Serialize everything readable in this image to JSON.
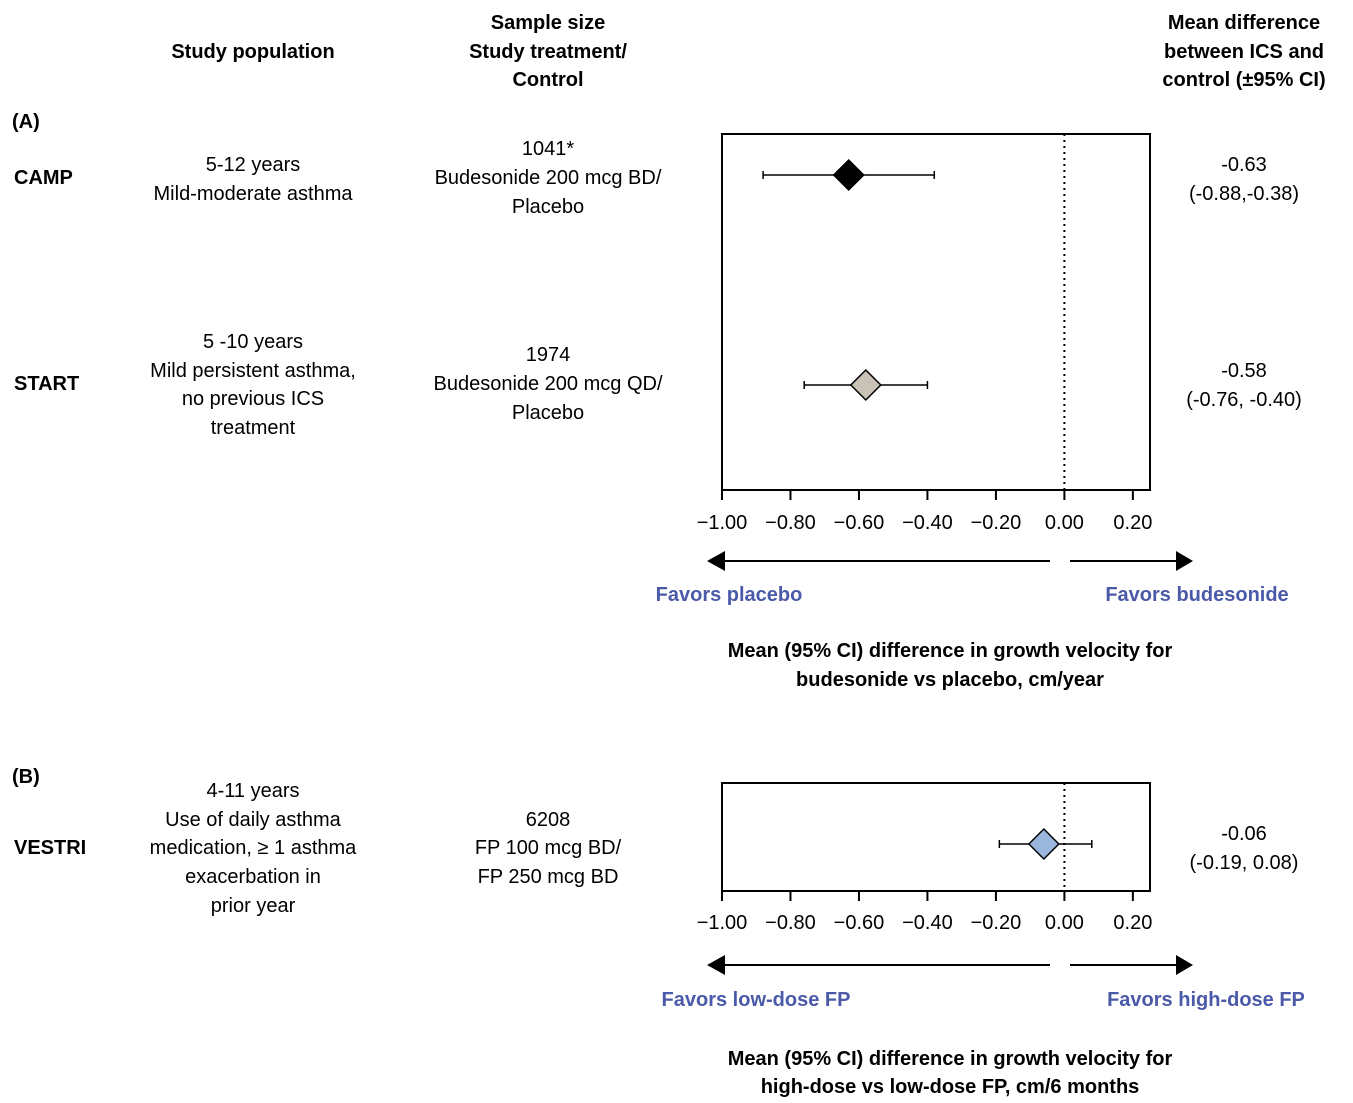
{
  "headers": {
    "population": "Study population",
    "sample": [
      "Sample size",
      "Study treatment/",
      "Control"
    ],
    "mean_diff": [
      "Mean difference",
      "between ICS and",
      "control (±95% CI)"
    ]
  },
  "panels": [
    {
      "label": "(A)",
      "studies": [
        {
          "name": "CAMP",
          "population": [
            "5-12 years",
            "Mild-moderate asthma"
          ],
          "sample": [
            "1041*",
            "Budesonide 200 mcg BD/",
            "Placebo"
          ],
          "estimate_text": [
            "-0.63",
            "(-0.88,-0.38)"
          ]
        },
        {
          "name": "START",
          "population": [
            "5 -10 years",
            "Mild persistent asthma,",
            "no previous ICS",
            "treatment"
          ],
          "sample": [
            "1974",
            "Budesonide 200 mcg QD/",
            "Placebo"
          ],
          "estimate_text": [
            "-0.58",
            "(-0.76, -0.40)"
          ]
        }
      ],
      "favors_left": "Favors placebo",
      "favors_right": "Favors budesonide",
      "xlabel": [
        "Mean (95% CI) difference in growth velocity for",
        "budesonide vs placebo, cm/year"
      ]
    },
    {
      "label": "(B)",
      "studies": [
        {
          "name": "VESTRI",
          "population": [
            "4-11 years",
            "Use of daily asthma",
            "medication, ≥ 1 asthma",
            "exacerbation in",
            "prior year"
          ],
          "sample": [
            "6208",
            "FP 100 mcg BD/",
            "FP 250 mcg BD"
          ],
          "estimate_text": [
            "-0.06",
            "(-0.19, 0.08)"
          ]
        }
      ],
      "favors_left": "Favors low-dose FP",
      "favors_right": "Favors high-dose FP",
      "xlabel": [
        "Mean (95% CI) difference in growth velocity for",
        "high-dose vs low-dose FP, cm/6 months"
      ]
    }
  ],
  "chart_data": [
    {
      "type": "scatter",
      "subtype": "forest",
      "panel": "(A)",
      "categories": [
        "CAMP",
        "START"
      ],
      "estimates": [
        -0.63,
        -0.58
      ],
      "ci_low": [
        -0.88,
        -0.76
      ],
      "ci_high": [
        -0.38,
        -0.4
      ],
      "marker_colors": [
        "#000000",
        "#c9c3b7"
      ],
      "xlim": [
        -1.0,
        0.25
      ],
      "xticks": [
        -1.0,
        -0.8,
        -0.6,
        -0.4,
        -0.2,
        0.0,
        0.2
      ],
      "xtick_labels": [
        "−1.00",
        "−0.80",
        "−0.60",
        "−0.40",
        "−0.20",
        "0.00",
        "0.20"
      ],
      "reference_line": 0.0,
      "xlabel": "Mean (95% CI) difference in growth velocity for budesonide vs placebo, cm/year"
    },
    {
      "type": "scatter",
      "subtype": "forest",
      "panel": "(B)",
      "categories": [
        "VESTRI"
      ],
      "estimates": [
        -0.06
      ],
      "ci_low": [
        -0.19
      ],
      "ci_high": [
        0.08
      ],
      "marker_colors": [
        "#9ab6dc"
      ],
      "xlim": [
        -1.0,
        0.25
      ],
      "xticks": [
        -1.0,
        -0.8,
        -0.6,
        -0.4,
        -0.2,
        0.0,
        0.2
      ],
      "xtick_labels": [
        "−1.00",
        "−0.80",
        "−0.60",
        "−0.40",
        "−0.20",
        "0.00",
        "0.20"
      ],
      "reference_line": 0.0,
      "xlabel": "Mean (95% CI) difference in growth velocity for high-dose vs low-dose FP, cm/6 months"
    }
  ]
}
